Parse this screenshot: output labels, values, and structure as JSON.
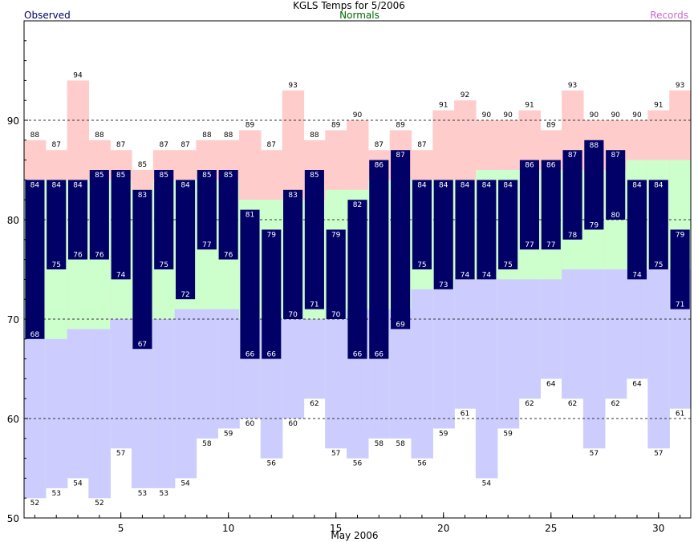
{
  "colors": {
    "observed": "#000066",
    "normals": "#006600",
    "records": "#cc66cc",
    "record_band": "#ffcccc",
    "normal_band": "#ccffcc",
    "record_low_band": "#ccccff"
  },
  "chart_data": {
    "type": "bar",
    "title": "KGLS Temps for 5/2006",
    "xlabel": "May 2006",
    "ylabel": "",
    "legend": [
      "Observed",
      "Normals",
      "Records"
    ],
    "ylim": [
      50,
      100
    ],
    "yticks": [
      50,
      60,
      70,
      80,
      90
    ],
    "xlim": [
      0.5,
      31.5
    ],
    "xticks": [
      5,
      10,
      15,
      20,
      25,
      30
    ],
    "grid_lines": [
      60,
      70,
      80,
      90
    ],
    "days": [
      1,
      2,
      3,
      4,
      5,
      6,
      7,
      8,
      9,
      10,
      11,
      12,
      13,
      14,
      15,
      16,
      17,
      18,
      19,
      20,
      21,
      22,
      23,
      24,
      25,
      26,
      27,
      28,
      29,
      30,
      31
    ],
    "observed_high": [
      84,
      84,
      84,
      85,
      85,
      83,
      85,
      84,
      85,
      85,
      81,
      79,
      83,
      85,
      79,
      82,
      86,
      87,
      84,
      84,
      84,
      84,
      84,
      86,
      86,
      87,
      88,
      87,
      84,
      84,
      79
    ],
    "observed_low": [
      68,
      75,
      76,
      76,
      74,
      67,
      75,
      72,
      77,
      76,
      66,
      66,
      70,
      71,
      70,
      66,
      66,
      69,
      75,
      73,
      74,
      74,
      75,
      77,
      77,
      78,
      79,
      80,
      74,
      75,
      71
    ],
    "record_high": [
      88,
      87,
      94,
      88,
      87,
      85,
      87,
      87,
      88,
      88,
      89,
      87,
      93,
      88,
      89,
      90,
      87,
      89,
      87,
      91,
      92,
      90,
      90,
      91,
      89,
      93,
      90,
      90,
      90,
      91,
      93
    ],
    "record_low": [
      52,
      53,
      54,
      52,
      57,
      53,
      53,
      54,
      58,
      59,
      60,
      56,
      60,
      62,
      57,
      56,
      58,
      58,
      56,
      59,
      61,
      54,
      59,
      62,
      64,
      62,
      57,
      62,
      64,
      57,
      61
    ],
    "normal_high": [
      84,
      84,
      84,
      84,
      84,
      83,
      84,
      84,
      84,
      84,
      82,
      82,
      82,
      82,
      83,
      83,
      84,
      84,
      84,
      84,
      84,
      85,
      85,
      85,
      85,
      85,
      85,
      85,
      86,
      86,
      86
    ],
    "normal_low": [
      68,
      68,
      69,
      69,
      70,
      70,
      70,
      71,
      71,
      71,
      70,
      70,
      70,
      70,
      70,
      71,
      71,
      71,
      73,
      73,
      74,
      74,
      74,
      74,
      74,
      75,
      75,
      75,
      75,
      75,
      75
    ]
  }
}
